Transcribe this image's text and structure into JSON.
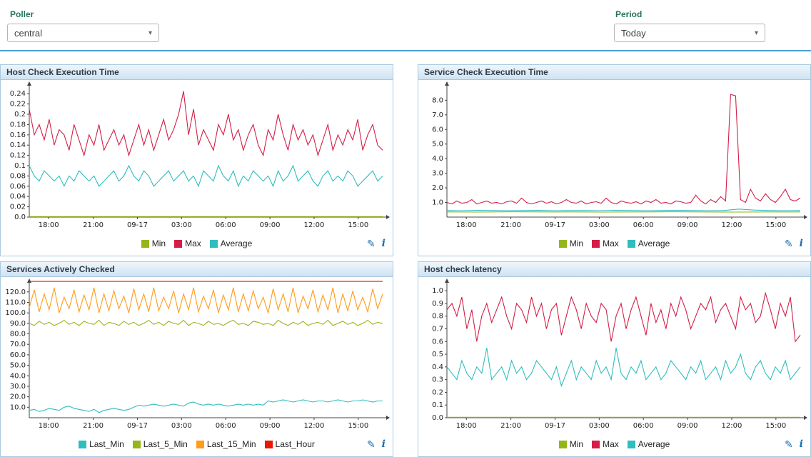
{
  "filters": {
    "poller": {
      "label": "Poller",
      "value": "central"
    },
    "period": {
      "label": "Period",
      "value": "Today"
    }
  },
  "icons": {
    "chevron": "▾",
    "edit": "✎",
    "info": "i"
  },
  "colors": {
    "max": "#d41e47",
    "min": "#94b618",
    "average": "#2fbdbd",
    "last_min": "#2fbdbd",
    "last_5_min": "#94b618",
    "last_15_min": "#ff9c1a",
    "last_hour": "#ea1800",
    "accent_blue": "#4d9fd6"
  },
  "chart_data": [
    {
      "type": "line",
      "title": "Host Check Execution Time",
      "ylim": [
        0,
        0.25
      ],
      "y_ticks": [
        {
          "v": 0,
          "label": "0.0"
        },
        {
          "v": 0.02,
          "label": "0.02"
        },
        {
          "v": 0.04,
          "label": "0.04"
        },
        {
          "v": 0.06,
          "label": "0.06"
        },
        {
          "v": 0.08,
          "label": "0.08"
        },
        {
          "v": 0.1,
          "label": "0.1"
        },
        {
          "v": 0.12,
          "label": "0.12"
        },
        {
          "v": 0.14,
          "label": "0.14"
        },
        {
          "v": 0.16,
          "label": "0.16"
        },
        {
          "v": 0.18,
          "label": "0.18"
        },
        {
          "v": 0.2,
          "label": "0.2"
        },
        {
          "v": 0.22,
          "label": "0.22"
        },
        {
          "v": 0.24,
          "label": "0.24"
        }
      ],
      "x_ticks": [
        {
          "pos": 0.055,
          "label": "18:00"
        },
        {
          "pos": 0.181,
          "label": "21:00"
        },
        {
          "pos": 0.306,
          "label": "09-17"
        },
        {
          "pos": 0.431,
          "label": "03:00"
        },
        {
          "pos": 0.556,
          "label": "06:00"
        },
        {
          "pos": 0.681,
          "label": "09:00"
        },
        {
          "pos": 0.806,
          "label": "12:00"
        },
        {
          "pos": 0.931,
          "label": "15:00"
        }
      ],
      "series": [
        {
          "name": "Min",
          "color": "#94b618",
          "values": [
            0.001,
            0.001
          ]
        },
        {
          "name": "Max",
          "color": "#d41e47",
          "values": [
            0.21,
            0.16,
            0.18,
            0.15,
            0.19,
            0.14,
            0.17,
            0.16,
            0.13,
            0.18,
            0.15,
            0.12,
            0.16,
            0.14,
            0.18,
            0.13,
            0.15,
            0.17,
            0.14,
            0.16,
            0.12,
            0.15,
            0.18,
            0.14,
            0.17,
            0.13,
            0.16,
            0.19,
            0.15,
            0.17,
            0.2,
            0.245,
            0.16,
            0.21,
            0.14,
            0.17,
            0.15,
            0.13,
            0.18,
            0.16,
            0.2,
            0.15,
            0.17,
            0.13,
            0.16,
            0.18,
            0.14,
            0.12,
            0.17,
            0.15,
            0.2,
            0.16,
            0.13,
            0.18,
            0.15,
            0.17,
            0.14,
            0.16,
            0.12,
            0.15,
            0.18,
            0.13,
            0.16,
            0.14,
            0.17,
            0.15,
            0.19,
            0.13,
            0.16,
            0.18,
            0.14,
            0.13
          ]
        },
        {
          "name": "Average",
          "color": "#2fbdbd",
          "values": [
            0.1,
            0.08,
            0.07,
            0.09,
            0.08,
            0.07,
            0.08,
            0.06,
            0.08,
            0.07,
            0.09,
            0.08,
            0.07,
            0.08,
            0.06,
            0.07,
            0.08,
            0.09,
            0.07,
            0.08,
            0.1,
            0.08,
            0.07,
            0.09,
            0.08,
            0.06,
            0.07,
            0.08,
            0.09,
            0.07,
            0.08,
            0.09,
            0.07,
            0.08,
            0.06,
            0.09,
            0.08,
            0.07,
            0.1,
            0.08,
            0.07,
            0.09,
            0.06,
            0.08,
            0.07,
            0.09,
            0.08,
            0.07,
            0.08,
            0.06,
            0.09,
            0.07,
            0.08,
            0.1,
            0.07,
            0.08,
            0.09,
            0.07,
            0.06,
            0.08,
            0.09,
            0.07,
            0.08,
            0.07,
            0.09,
            0.08,
            0.06,
            0.07,
            0.08,
            0.09,
            0.07,
            0.08
          ]
        }
      ]
    },
    {
      "type": "line",
      "title": "Service Check Execution Time",
      "ylim": [
        0,
        8.8
      ],
      "y_ticks": [
        {
          "v": 1,
          "label": "1.0"
        },
        {
          "v": 2,
          "label": "2.0"
        },
        {
          "v": 3,
          "label": "3.0"
        },
        {
          "v": 4,
          "label": "4.0"
        },
        {
          "v": 5,
          "label": "5.0"
        },
        {
          "v": 6,
          "label": "6.0"
        },
        {
          "v": 7,
          "label": "7.0"
        },
        {
          "v": 8,
          "label": "8.0"
        }
      ],
      "x_ticks": [
        {
          "pos": 0.055,
          "label": "18:00"
        },
        {
          "pos": 0.181,
          "label": "21:00"
        },
        {
          "pos": 0.306,
          "label": "09-17"
        },
        {
          "pos": 0.431,
          "label": "03:00"
        },
        {
          "pos": 0.556,
          "label": "06:00"
        },
        {
          "pos": 0.681,
          "label": "09:00"
        },
        {
          "pos": 0.806,
          "label": "12:00"
        },
        {
          "pos": 0.931,
          "label": "15:00"
        }
      ],
      "series": [
        {
          "name": "Min",
          "color": "#94b618",
          "values": [
            0.35,
            0.34,
            0.36,
            0.35,
            0.35,
            0.34,
            0.35,
            0.36,
            0.35,
            0.34,
            0.35,
            0.35
          ]
        },
        {
          "name": "Max",
          "color": "#d41e47",
          "values": [
            1.0,
            0.9,
            1.1,
            0.95,
            1.0,
            1.2,
            0.9,
            1.0,
            1.1,
            0.95,
            1.0,
            0.9,
            1.05,
            1.1,
            0.95,
            1.3,
            1.0,
            0.9,
            1.0,
            1.1,
            0.95,
            1.05,
            0.9,
            1.0,
            1.2,
            1.0,
            0.95,
            1.1,
            0.9,
            1.0,
            1.05,
            0.95,
            1.3,
            1.0,
            0.9,
            1.1,
            1.0,
            0.95,
            1.05,
            0.9,
            1.1,
            1.0,
            1.2,
            0.95,
            1.0,
            0.9,
            1.1,
            1.05,
            0.95,
            1.0,
            1.5,
            1.1,
            0.9,
            1.2,
            1.0,
            1.4,
            1.1,
            8.4,
            8.3,
            1.2,
            1.0,
            1.9,
            1.3,
            1.1,
            1.6,
            1.2,
            1.0,
            1.4,
            1.9,
            1.2,
            1.1,
            1.3
          ]
        },
        {
          "name": "Average",
          "color": "#2fbdbd",
          "values": [
            0.45,
            0.44,
            0.46,
            0.45,
            0.44,
            0.45,
            0.46,
            0.44,
            0.45,
            0.45,
            0.44,
            0.46,
            0.45,
            0.44,
            0.45,
            0.46,
            0.45,
            0.44,
            0.45,
            0.55,
            0.48,
            0.45,
            0.44,
            0.45
          ]
        }
      ]
    },
    {
      "type": "line",
      "title": "Services Actively Checked",
      "ylim": [
        0,
        126
      ],
      "y_ticks": [
        {
          "v": 10,
          "label": "10.0"
        },
        {
          "v": 20,
          "label": "20.0"
        },
        {
          "v": 30,
          "label": "30.0"
        },
        {
          "v": 40,
          "label": "40.0"
        },
        {
          "v": 50,
          "label": "50.0"
        },
        {
          "v": 60,
          "label": "60.0"
        },
        {
          "v": 70,
          "label": "70.0"
        },
        {
          "v": 80,
          "label": "80.0"
        },
        {
          "v": 90,
          "label": "90.0"
        },
        {
          "v": 100,
          "label": "100.0"
        },
        {
          "v": 110,
          "label": "110.0"
        },
        {
          "v": 120,
          "label": "120.0"
        }
      ],
      "x_ticks": [
        {
          "pos": 0.055,
          "label": "18:00"
        },
        {
          "pos": 0.181,
          "label": "21:00"
        },
        {
          "pos": 0.306,
          "label": "09-17"
        },
        {
          "pos": 0.431,
          "label": "03:00"
        },
        {
          "pos": 0.556,
          "label": "06:00"
        },
        {
          "pos": 0.681,
          "label": "09:00"
        },
        {
          "pos": 0.806,
          "label": "12:00"
        },
        {
          "pos": 0.931,
          "label": "15:00"
        }
      ],
      "series": [
        {
          "name": "Last_Min",
          "color": "#2fbdbd",
          "values": [
            7,
            8,
            6,
            7,
            9,
            8,
            7,
            10,
            11,
            9,
            8,
            7,
            6,
            8,
            5,
            7,
            8,
            9,
            8,
            7,
            8,
            10,
            12,
            11,
            12,
            13,
            12,
            11,
            12,
            13,
            12,
            11,
            14,
            15,
            13,
            12,
            13,
            12,
            13,
            12,
            11,
            12,
            13,
            12,
            13,
            12,
            13,
            12,
            16,
            15,
            16,
            17,
            16,
            15,
            16,
            17,
            16,
            15,
            16,
            16,
            15,
            16,
            17,
            16,
            15,
            16,
            16,
            17,
            16,
            15,
            16,
            16
          ]
        },
        {
          "name": "Last_5_Min",
          "color": "#94b618",
          "values": [
            90,
            88,
            92,
            89,
            91,
            88,
            90,
            93,
            89,
            91,
            88,
            92,
            90,
            89,
            93,
            88,
            91,
            90,
            88,
            92,
            89,
            91,
            88,
            90,
            93,
            89,
            91,
            88,
            92,
            90,
            89,
            93,
            88,
            91,
            90,
            88,
            92,
            89,
            90,
            88,
            91,
            93,
            89,
            90,
            88,
            92,
            91,
            89,
            90,
            88,
            93,
            90,
            88,
            91,
            89,
            92,
            88,
            90,
            91,
            89,
            93,
            88,
            90,
            92,
            89,
            91,
            88,
            90,
            93,
            89,
            91,
            90
          ]
        },
        {
          "name": "Last_15_Min",
          "color": "#ff9c1a",
          "values": [
            105,
            122,
            101,
            118,
            103,
            124,
            100,
            115,
            104,
            122,
            101,
            117,
            103,
            124,
            100,
            118,
            102,
            121,
            104,
            116,
            100,
            123,
            103,
            118,
            101,
            124,
            102,
            115,
            104,
            121,
            100,
            118,
            103,
            124,
            101,
            116,
            104,
            122,
            100,
            117,
            103,
            124,
            101,
            118,
            102,
            121,
            104,
            115,
            100,
            123,
            103,
            118,
            101,
            124,
            100,
            116,
            104,
            122,
            101,
            117,
            103,
            124,
            100,
            118,
            102,
            121,
            103,
            115,
            101,
            123,
            104,
            118
          ]
        },
        {
          "name": "Last_Hour",
          "color": "#ea1800",
          "values": [
            130,
            130
          ]
        }
      ]
    },
    {
      "type": "line",
      "title": "Host check latency",
      "ylim": [
        0,
        1.04
      ],
      "y_ticks": [
        {
          "v": 0,
          "label": "0.0"
        },
        {
          "v": 0.1,
          "label": "0.1"
        },
        {
          "v": 0.2,
          "label": "0.2"
        },
        {
          "v": 0.3,
          "label": "0.3"
        },
        {
          "v": 0.4,
          "label": "0.4"
        },
        {
          "v": 0.5,
          "label": "0.5"
        },
        {
          "v": 0.6,
          "label": "0.6"
        },
        {
          "v": 0.7,
          "label": "0.7"
        },
        {
          "v": 0.8,
          "label": "0.8"
        },
        {
          "v": 0.9,
          "label": "0.9"
        },
        {
          "v": 1.0,
          "label": "1.0"
        }
      ],
      "x_ticks": [
        {
          "pos": 0.055,
          "label": "18:00"
        },
        {
          "pos": 0.181,
          "label": "21:00"
        },
        {
          "pos": 0.306,
          "label": "09-17"
        },
        {
          "pos": 0.431,
          "label": "03:00"
        },
        {
          "pos": 0.556,
          "label": "06:00"
        },
        {
          "pos": 0.681,
          "label": "09:00"
        },
        {
          "pos": 0.806,
          "label": "12:00"
        },
        {
          "pos": 0.931,
          "label": "15:00"
        }
      ],
      "series": [
        {
          "name": "Min",
          "color": "#94b618",
          "values": [
            0.004,
            0.004
          ]
        },
        {
          "name": "Max",
          "color": "#d41e47",
          "values": [
            0.85,
            0.9,
            0.8,
            0.95,
            0.7,
            0.85,
            0.6,
            0.8,
            0.9,
            0.75,
            0.85,
            0.95,
            0.8,
            0.7,
            0.9,
            0.85,
            0.75,
            0.95,
            0.8,
            0.9,
            0.7,
            0.85,
            0.9,
            0.65,
            0.8,
            0.95,
            0.85,
            0.7,
            0.9,
            0.8,
            0.75,
            0.9,
            0.85,
            0.6,
            0.8,
            0.9,
            0.7,
            0.85,
            0.95,
            0.8,
            0.65,
            0.9,
            0.75,
            0.85,
            0.7,
            0.9,
            0.8,
            0.95,
            0.85,
            0.7,
            0.8,
            0.9,
            0.85,
            0.95,
            0.75,
            0.85,
            0.9,
            0.8,
            0.7,
            0.95,
            0.85,
            0.9,
            0.75,
            0.8,
            0.98,
            0.85,
            0.7,
            0.9,
            0.8,
            0.95,
            0.6,
            0.65
          ]
        },
        {
          "name": "Average",
          "color": "#2fbdbd",
          "values": [
            0.4,
            0.35,
            0.3,
            0.45,
            0.35,
            0.3,
            0.4,
            0.35,
            0.55,
            0.3,
            0.35,
            0.4,
            0.3,
            0.45,
            0.35,
            0.4,
            0.3,
            0.35,
            0.45,
            0.4,
            0.35,
            0.3,
            0.4,
            0.25,
            0.35,
            0.45,
            0.3,
            0.4,
            0.35,
            0.3,
            0.45,
            0.35,
            0.4,
            0.3,
            0.55,
            0.35,
            0.3,
            0.4,
            0.35,
            0.45,
            0.3,
            0.35,
            0.4,
            0.3,
            0.35,
            0.45,
            0.4,
            0.35,
            0.3,
            0.4,
            0.35,
            0.45,
            0.3,
            0.35,
            0.4,
            0.3,
            0.45,
            0.35,
            0.4,
            0.5,
            0.35,
            0.3,
            0.4,
            0.45,
            0.35,
            0.3,
            0.4,
            0.35,
            0.45,
            0.3,
            0.35,
            0.4
          ]
        }
      ]
    }
  ]
}
